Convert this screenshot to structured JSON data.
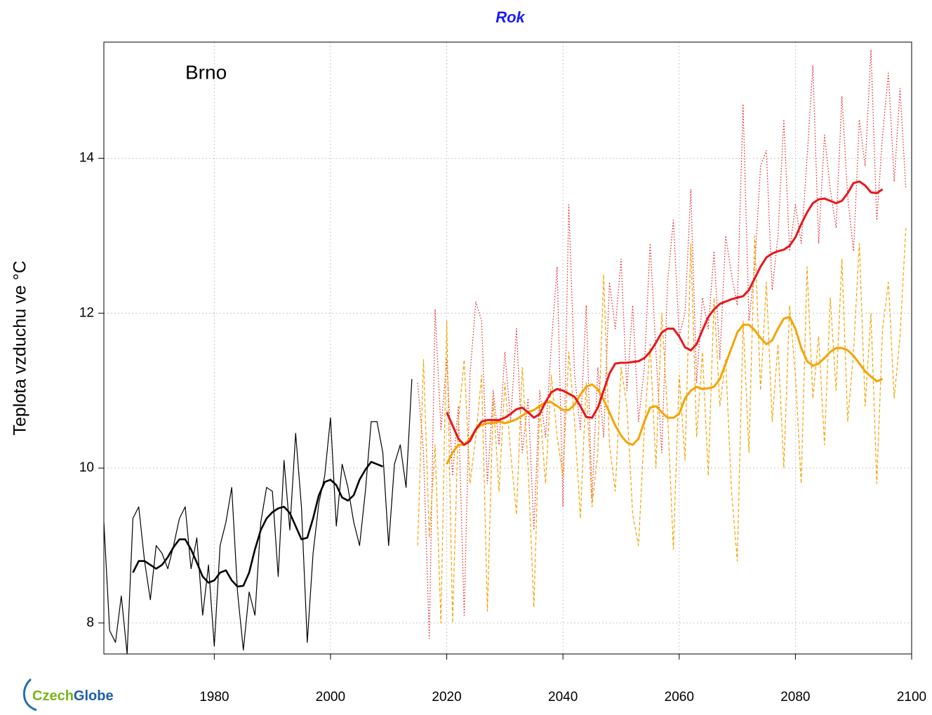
{
  "chart_data": {
    "type": "line",
    "title": "Rok",
    "ylabel": "Teplota vzduchu ve °C",
    "annotation": "Brno",
    "xlim": [
      1961,
      2100
    ],
    "ylim": [
      7.6,
      15.5
    ],
    "xticks": [
      1980,
      2000,
      2020,
      2040,
      2060,
      2080,
      2100
    ],
    "yticks": [
      8,
      10,
      12,
      14
    ],
    "grid": true,
    "series": [
      {
        "color": "#e8161b",
        "style": "dotted",
        "line_width": 1.2,
        "x": [
          2015,
          2016,
          2017,
          2018,
          2019,
          2020,
          2021,
          2022,
          2023,
          2024,
          2025,
          2026,
          2027,
          2028,
          2029,
          2030,
          2031,
          2032,
          2033,
          2034,
          2035,
          2036,
          2037,
          2038,
          2039,
          2040,
          2041,
          2042,
          2043,
          2044,
          2045,
          2046,
          2047,
          2048,
          2049,
          2050,
          2051,
          2052,
          2053,
          2054,
          2055,
          2056,
          2057,
          2058,
          2059,
          2060,
          2061,
          2062,
          2063,
          2064,
          2065,
          2066,
          2067,
          2068,
          2069,
          2070,
          2071,
          2072,
          2073,
          2074,
          2075,
          2076,
          2077,
          2078,
          2079,
          2080,
          2081,
          2082,
          2083,
          2084,
          2085,
          2086,
          2087,
          2088,
          2089,
          2090,
          2091,
          2092,
          2093,
          2094,
          2095,
          2096,
          2097,
          2098,
          2099
        ],
        "values": [
          11.1,
          10.2,
          7.8,
          12.05,
          10.5,
          11.4,
          9.9,
          10.8,
          8.1,
          11.2,
          12.15,
          11.9,
          9.8,
          11.0,
          10.3,
          11.5,
          10.6,
          11.8,
          10.2,
          10.9,
          9.2,
          11.0,
          10.4,
          11.6,
          12.6,
          9.5,
          13.4,
          11.2,
          10.5,
          12.1,
          9.6,
          11.3,
          10.4,
          12.4,
          11.8,
          12.7,
          11.0,
          12.1,
          10.6,
          11.3,
          12.9,
          11.5,
          10.2,
          12.4,
          13.2,
          11.7,
          12.0,
          13.6,
          11.1,
          12.2,
          11.8,
          12.8,
          11.4,
          13.0,
          12.5,
          12.1,
          14.7,
          11.9,
          12.6,
          13.9,
          14.1,
          12.3,
          13.0,
          14.5,
          12.8,
          13.4,
          12.9,
          14.0,
          15.2,
          12.9,
          14.3,
          13.6,
          13.1,
          14.8,
          13.5,
          12.8,
          14.5,
          13.9,
          15.4,
          13.2,
          14.3,
          15.1,
          13.7,
          14.9,
          13.6
        ]
      },
      {
        "color": "#f5a300",
        "style": "dashed",
        "line_width": 1.2,
        "x": [
          2015,
          2016,
          2017,
          2018,
          2019,
          2020,
          2021,
          2022,
          2023,
          2024,
          2025,
          2026,
          2027,
          2028,
          2029,
          2030,
          2031,
          2032,
          2033,
          2034,
          2035,
          2036,
          2037,
          2038,
          2039,
          2040,
          2041,
          2042,
          2043,
          2044,
          2045,
          2046,
          2047,
          2048,
          2049,
          2050,
          2051,
          2052,
          2053,
          2054,
          2055,
          2056,
          2057,
          2058,
          2059,
          2060,
          2061,
          2062,
          2063,
          2064,
          2065,
          2066,
          2067,
          2068,
          2069,
          2070,
          2071,
          2072,
          2073,
          2074,
          2075,
          2076,
          2077,
          2078,
          2079,
          2080,
          2081,
          2082,
          2083,
          2084,
          2085,
          2086,
          2087,
          2088,
          2089,
          2090,
          2091,
          2092,
          2093,
          2094,
          2095,
          2096,
          2097,
          2098,
          2099
        ],
        "values": [
          9.0,
          11.4,
          9.1,
          10.3,
          8.0,
          11.9,
          8.0,
          10.6,
          11.4,
          9.8,
          10.4,
          11.2,
          8.15,
          10.9,
          9.7,
          11.1,
          10.2,
          9.4,
          11.3,
          10.0,
          8.2,
          10.8,
          9.8,
          11.2,
          10.4,
          9.9,
          11.5,
          10.6,
          9.35,
          11.1,
          9.5,
          10.2,
          12.5,
          10.3,
          9.7,
          11.3,
          10.8,
          9.4,
          9.0,
          10.5,
          11.6,
          10.0,
          12.0,
          10.7,
          8.95,
          11.2,
          10.1,
          12.9,
          10.4,
          11.5,
          9.9,
          12.2,
          10.8,
          11.4,
          9.7,
          8.8,
          11.9,
          10.2,
          13.0,
          11.0,
          12.4,
          10.6,
          11.6,
          10.0,
          12.1,
          11.2,
          9.8,
          12.6,
          10.9,
          11.7,
          10.3,
          12.2,
          11.0,
          12.7,
          10.6,
          11.5,
          12.9,
          10.8,
          12.0,
          9.8,
          11.8,
          12.4,
          10.9,
          11.7,
          13.1
        ]
      },
      {
        "color": "#000000",
        "style": "solid",
        "line_width": 1.2,
        "x": [
          1961,
          1962,
          1963,
          1964,
          1965,
          1966,
          1967,
          1968,
          1969,
          1970,
          1971,
          1972,
          1973,
          1974,
          1975,
          1976,
          1977,
          1978,
          1979,
          1980,
          1981,
          1982,
          1983,
          1984,
          1985,
          1986,
          1987,
          1988,
          1989,
          1990,
          1991,
          1992,
          1993,
          1994,
          1995,
          1996,
          1997,
          1998,
          1999,
          2000,
          2001,
          2002,
          2003,
          2004,
          2005,
          2006,
          2007,
          2008,
          2009,
          2010,
          2011,
          2012,
          2013,
          2014
        ],
        "values": [
          9.3,
          7.9,
          7.75,
          8.35,
          7.6,
          9.35,
          9.5,
          8.8,
          8.3,
          9.0,
          8.9,
          8.7,
          9.0,
          9.35,
          9.5,
          8.7,
          9.1,
          8.1,
          8.75,
          7.7,
          9.0,
          9.3,
          9.75,
          8.4,
          7.65,
          8.4,
          8.1,
          9.3,
          9.75,
          9.7,
          8.6,
          10.1,
          9.2,
          10.45,
          9.5,
          7.75,
          8.9,
          9.55,
          9.9,
          10.65,
          9.25,
          10.05,
          9.75,
          9.3,
          9.0,
          9.7,
          10.6,
          10.6,
          10.2,
          9.0,
          10.05,
          10.3,
          9.75,
          11.15
        ]
      },
      {
        "color": "#000000",
        "style": "solid",
        "line_width": 2.6,
        "x": [
          1966,
          1967,
          1968,
          1969,
          1970,
          1971,
          1972,
          1973,
          1974,
          1975,
          1976,
          1977,
          1978,
          1979,
          1980,
          1981,
          1982,
          1983,
          1984,
          1985,
          1986,
          1987,
          1988,
          1989,
          1990,
          1991,
          1992,
          1993,
          1994,
          1995,
          1996,
          1997,
          1998,
          1999,
          2000,
          2001,
          2002,
          2003,
          2004,
          2005,
          2006,
          2007,
          2008,
          2009
        ],
        "values": [
          8.65,
          8.8,
          8.8,
          8.75,
          8.7,
          8.75,
          8.85,
          8.98,
          9.08,
          9.08,
          8.95,
          8.78,
          8.6,
          8.52,
          8.55,
          8.65,
          8.68,
          8.55,
          8.47,
          8.48,
          8.65,
          8.95,
          9.2,
          9.35,
          9.43,
          9.48,
          9.5,
          9.42,
          9.25,
          9.08,
          9.1,
          9.35,
          9.65,
          9.82,
          9.85,
          9.78,
          9.62,
          9.58,
          9.65,
          9.85,
          9.98,
          10.08,
          10.05,
          10.02
        ]
      },
      {
        "color": "#f5a300",
        "style": "solid",
        "line_width": 3,
        "x": [
          2020,
          2021,
          2022,
          2023,
          2024,
          2025,
          2026,
          2027,
          2028,
          2029,
          2030,
          2031,
          2032,
          2033,
          2034,
          2035,
          2036,
          2037,
          2038,
          2039,
          2040,
          2041,
          2042,
          2043,
          2044,
          2045,
          2046,
          2047,
          2048,
          2049,
          2050,
          2051,
          2052,
          2053,
          2054,
          2055,
          2056,
          2057,
          2058,
          2059,
          2060,
          2061,
          2062,
          2063,
          2064,
          2065,
          2066,
          2067,
          2068,
          2069,
          2070,
          2071,
          2072,
          2073,
          2074,
          2075,
          2076,
          2077,
          2078,
          2079,
          2080,
          2081,
          2082,
          2083,
          2084,
          2085,
          2086,
          2087,
          2088,
          2089,
          2090,
          2091,
          2092,
          2093,
          2094,
          2095
        ],
        "values": [
          10.05,
          10.2,
          10.3,
          10.3,
          10.38,
          10.5,
          10.56,
          10.58,
          10.58,
          10.6,
          10.58,
          10.6,
          10.63,
          10.68,
          10.72,
          10.75,
          10.8,
          10.85,
          10.85,
          10.8,
          10.75,
          10.75,
          10.82,
          10.95,
          11.05,
          11.08,
          11.02,
          10.88,
          10.72,
          10.55,
          10.42,
          10.33,
          10.3,
          10.38,
          10.6,
          10.78,
          10.8,
          10.72,
          10.65,
          10.65,
          10.7,
          10.9,
          11.0,
          11.05,
          11.02,
          11.03,
          11.05,
          11.15,
          11.35,
          11.55,
          11.75,
          11.85,
          11.85,
          11.78,
          11.68,
          11.6,
          11.65,
          11.8,
          11.93,
          11.95,
          11.8,
          11.55,
          11.38,
          11.32,
          11.35,
          11.42,
          11.5,
          11.55,
          11.55,
          11.52,
          11.45,
          11.35,
          11.25,
          11.18,
          11.12,
          11.15
        ]
      },
      {
        "color": "#e8161b",
        "style": "solid",
        "line_width": 3,
        "x": [
          2020,
          2021,
          2022,
          2023,
          2024,
          2025,
          2026,
          2027,
          2028,
          2029,
          2030,
          2031,
          2032,
          2033,
          2034,
          2035,
          2036,
          2037,
          2038,
          2039,
          2040,
          2041,
          2042,
          2043,
          2044,
          2045,
          2046,
          2047,
          2048,
          2049,
          2050,
          2051,
          2052,
          2053,
          2054,
          2055,
          2056,
          2057,
          2058,
          2059,
          2060,
          2061,
          2062,
          2063,
          2064,
          2065,
          2066,
          2067,
          2068,
          2069,
          2070,
          2071,
          2072,
          2073,
          2074,
          2075,
          2076,
          2077,
          2078,
          2079,
          2080,
          2081,
          2082,
          2083,
          2084,
          2085,
          2086,
          2087,
          2088,
          2089,
          2090,
          2091,
          2092,
          2093,
          2094,
          2095
        ],
        "values": [
          10.72,
          10.55,
          10.38,
          10.3,
          10.35,
          10.5,
          10.6,
          10.62,
          10.62,
          10.62,
          10.65,
          10.7,
          10.76,
          10.78,
          10.72,
          10.65,
          10.7,
          10.85,
          10.98,
          11.02,
          11.0,
          10.96,
          10.92,
          10.8,
          10.66,
          10.65,
          10.78,
          11.0,
          11.22,
          11.35,
          11.36,
          11.36,
          11.37,
          11.38,
          11.42,
          11.5,
          11.62,
          11.75,
          11.8,
          11.8,
          11.7,
          11.56,
          11.52,
          11.6,
          11.78,
          11.95,
          12.05,
          12.12,
          12.15,
          12.18,
          12.2,
          12.22,
          12.3,
          12.45,
          12.6,
          12.72,
          12.77,
          12.8,
          12.82,
          12.87,
          12.98,
          13.15,
          13.3,
          13.42,
          13.47,
          13.48,
          13.45,
          13.42,
          13.45,
          13.55,
          13.68,
          13.7,
          13.65,
          13.56,
          13.55,
          13.6
        ]
      }
    ]
  },
  "logo": {
    "part1": "Czech",
    "part2": "Globe"
  }
}
